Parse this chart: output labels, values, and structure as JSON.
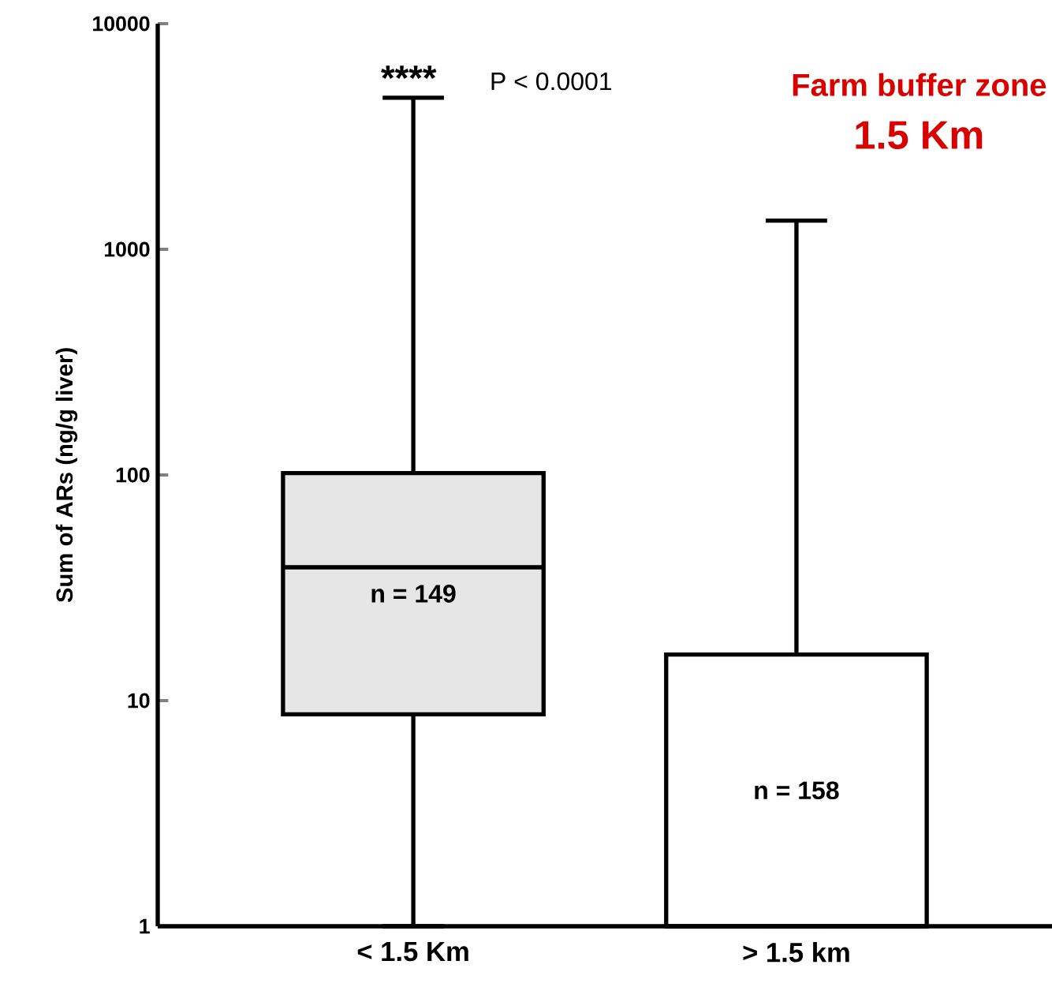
{
  "chart_data": {
    "type": "box",
    "title": "Farm buffer zone",
    "subtitle": "1.5 Km",
    "ylabel": "Sum of ARs (ng/g liver)",
    "categories": [
      "< 1.5 Km",
      "> 1.5 km"
    ],
    "colors": [
      "#e6e6e6",
      "#ffffff"
    ],
    "boxes": [
      {
        "low": 1,
        "q1": 8.7,
        "median": 39,
        "q3": 102,
        "high": 4700
      },
      {
        "low": 1,
        "q1": 1,
        "median": 1,
        "q3": 16,
        "high": 1340
      }
    ],
    "log": "y",
    "ylim": [
      1,
      10000
    ],
    "yticks": [
      1,
      10,
      100,
      1000,
      10000
    ],
    "grid": false,
    "annotations": [
      "****",
      "P < 0.0001",
      "n = 149",
      "n = 158"
    ]
  }
}
